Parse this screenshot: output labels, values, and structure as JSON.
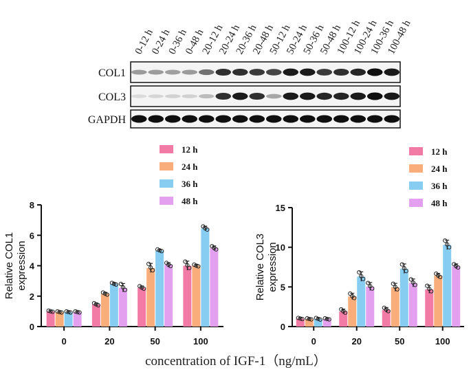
{
  "blot": {
    "lane_labels": [
      "0-12 h",
      "0-24 h",
      "0-36 h",
      "0-48 h",
      "20-12 h",
      "20-24 h",
      "20-36 h",
      "20-48 h",
      "50-12 h",
      "50-24 h",
      "50-36 h",
      "50-48 h",
      "100-12 h",
      "100-24 h",
      "100-36 h",
      "100-48 h"
    ],
    "rows": [
      {
        "label": "COL1",
        "intensity": [
          0.35,
          0.35,
          0.33,
          0.35,
          0.55,
          0.85,
          0.85,
          0.8,
          0.75,
          0.95,
          0.95,
          0.8,
          0.85,
          0.9,
          1.0,
          0.95
        ]
      },
      {
        "label": "COL3",
        "intensity": [
          0.05,
          0.08,
          0.1,
          0.1,
          0.2,
          0.85,
          0.95,
          0.85,
          0.3,
          0.95,
          0.95,
          0.9,
          0.9,
          0.95,
          1.0,
          0.95
        ]
      },
      {
        "label": "GAPDH",
        "intensity": [
          1,
          1,
          1,
          1,
          1,
          1,
          1,
          1,
          1,
          1,
          1,
          1,
          1,
          1,
          1,
          1
        ]
      }
    ]
  },
  "colors": {
    "12 h": "#f27ba5",
    "24 h": "#f9ad7a",
    "36 h": "#87cdf2",
    "48 h": "#e2a0ee"
  },
  "chart_data": [
    {
      "type": "bar",
      "categories": [
        "0",
        "20",
        "50",
        "100"
      ],
      "series": [
        {
          "name": "12 h",
          "values": [
            1.0,
            1.45,
            2.55,
            4.0
          ],
          "err": [
            0.05,
            0.1,
            0.12,
            0.3
          ]
        },
        {
          "name": "24 h",
          "values": [
            0.95,
            2.15,
            3.85,
            4.0
          ],
          "err": [
            0.05,
            0.1,
            0.3,
            0.08
          ]
        },
        {
          "name": "36 h",
          "values": [
            0.95,
            2.8,
            5.0,
            6.45
          ],
          "err": [
            0.05,
            0.08,
            0.08,
            0.15
          ]
        },
        {
          "name": "48 h",
          "values": [
            0.95,
            2.55,
            4.05,
            5.15
          ],
          "err": [
            0.05,
            0.28,
            0.15,
            0.15
          ]
        }
      ],
      "ylabel": "Relative COL1\nexpression",
      "ylim": [
        0,
        8
      ],
      "yticks": [
        "0",
        "2",
        "4",
        "6",
        "8"
      ],
      "legend": "top",
      "grid": false
    },
    {
      "type": "bar",
      "categories": [
        "0",
        "20",
        "50",
        "100"
      ],
      "series": [
        {
          "name": "12 h",
          "values": [
            1.0,
            1.9,
            2.1,
            4.7
          ],
          "err": [
            0.1,
            0.3,
            0.3,
            0.5
          ]
        },
        {
          "name": "24 h",
          "values": [
            0.95,
            3.8,
            4.95,
            6.4
          ],
          "err": [
            0.1,
            0.4,
            0.5,
            0.3
          ]
        },
        {
          "name": "36 h",
          "values": [
            0.95,
            6.3,
            7.3,
            10.3
          ],
          "err": [
            0.15,
            0.6,
            0.6,
            0.6
          ]
        },
        {
          "name": "48 h",
          "values": [
            0.95,
            5.05,
            5.5,
            7.6
          ],
          "err": [
            0.1,
            0.5,
            0.5,
            0.3
          ]
        }
      ],
      "ylabel": "Relative COL3\nexpression",
      "ylim": [
        0,
        15
      ],
      "yticks": [
        "0",
        "5",
        "10",
        "15"
      ],
      "legend": "top",
      "grid": false
    }
  ],
  "xlabel": "concentration of IGF-1（ng/mL）"
}
